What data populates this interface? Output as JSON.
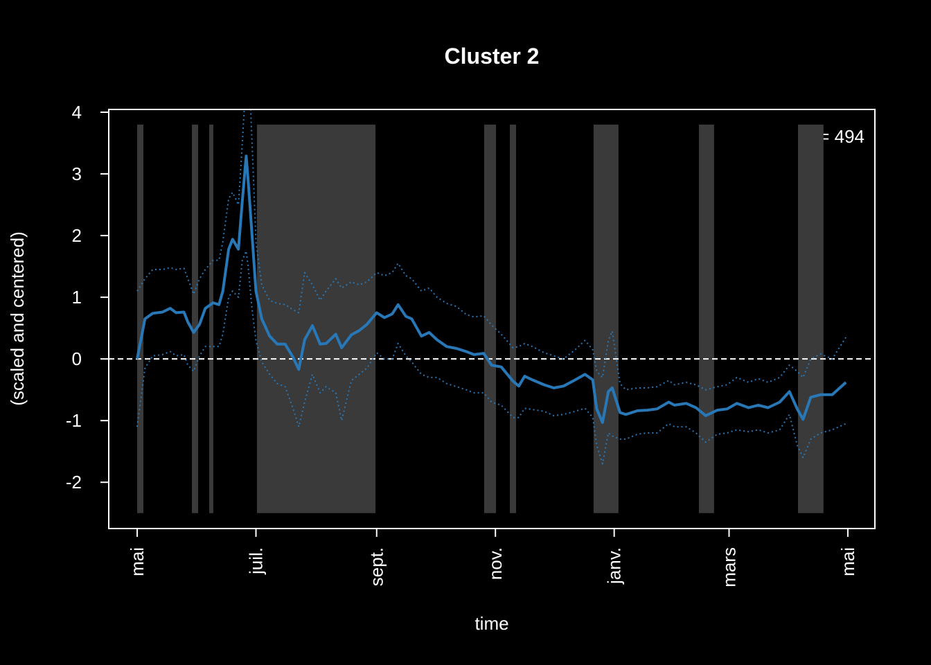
{
  "chart_data": {
    "type": "line",
    "title": "Cluster 2",
    "xlabel": "time",
    "ylabel": "(scaled and centered)",
    "annotation": "n = 494",
    "x": [
      0,
      4,
      8,
      13,
      17,
      20,
      24,
      26,
      29,
      32,
      35,
      39,
      42,
      44,
      47,
      49,
      52,
      54,
      56,
      57,
      59,
      61,
      64,
      68,
      72,
      76,
      80,
      83,
      86,
      90,
      94,
      97,
      102,
      105,
      110,
      114,
      118,
      123,
      127,
      131,
      134,
      138,
      141,
      146,
      150,
      154,
      159,
      164,
      169,
      173,
      178,
      182,
      187,
      193,
      196,
      199,
      203,
      209,
      214,
      219,
      225,
      230,
      234,
      236,
      239,
      242,
      244,
      248,
      251,
      257,
      262,
      267,
      273,
      276,
      282,
      287,
      292,
      298,
      303,
      308,
      314,
      319,
      324,
      330,
      335,
      339,
      342,
      346,
      351,
      357,
      364
    ],
    "series": [
      {
        "name": "mean",
        "color": "#2878b8",
        "style": "solid",
        "values": [
          0,
          0.65,
          0.74,
          0.76,
          0.82,
          0.75,
          0.76,
          0.6,
          0.43,
          0.56,
          0.82,
          0.91,
          0.88,
          1.1,
          1.78,
          1.94,
          1.78,
          2.56,
          3.29,
          2.9,
          2.0,
          1.1,
          0.65,
          0.37,
          0.24,
          0.24,
          0.03,
          -0.17,
          0.31,
          0.54,
          0.24,
          0.25,
          0.4,
          0.18,
          0.39,
          0.46,
          0.56,
          0.75,
          0.67,
          0.73,
          0.88,
          0.69,
          0.65,
          0.37,
          0.43,
          0.31,
          0.2,
          0.17,
          0.12,
          0.07,
          0.09,
          -0.1,
          -0.13,
          -0.36,
          -0.44,
          -0.28,
          -0.34,
          -0.42,
          -0.47,
          -0.44,
          -0.34,
          -0.25,
          -0.34,
          -0.81,
          -1.03,
          -0.53,
          -0.47,
          -0.87,
          -0.9,
          -0.84,
          -0.83,
          -0.81,
          -0.7,
          -0.75,
          -0.72,
          -0.79,
          -0.92,
          -0.83,
          -0.81,
          -0.72,
          -0.79,
          -0.75,
          -0.79,
          -0.7,
          -0.53,
          -0.81,
          -0.98,
          -0.62,
          -0.58,
          -0.58,
          -0.38
        ]
      },
      {
        "name": "upper",
        "color": "#2878b8",
        "style": "dotted",
        "values": [
          1.1,
          1.3,
          1.45,
          1.45,
          1.48,
          1.45,
          1.47,
          1.3,
          1.05,
          1.3,
          1.45,
          1.6,
          1.6,
          1.9,
          2.6,
          2.7,
          2.5,
          3.5,
          4.6,
          5,
          3.5,
          1.9,
          1.2,
          0.95,
          0.9,
          0.88,
          0.8,
          0.75,
          1.4,
          1.2,
          0.95,
          1.1,
          1.3,
          1.15,
          1.25,
          1.2,
          1.25,
          1.4,
          1.35,
          1.4,
          1.55,
          1.35,
          1.3,
          1.1,
          1.15,
          1.0,
          0.9,
          0.85,
          0.72,
          0.68,
          0.7,
          0.55,
          0.4,
          0.18,
          0.2,
          0.25,
          0.2,
          0.1,
          0.05,
          0.0,
          0.15,
          0.3,
          0.15,
          -0.2,
          -0.3,
          0.3,
          0.45,
          -0.4,
          -0.5,
          -0.47,
          -0.47,
          -0.45,
          -0.35,
          -0.42,
          -0.38,
          -0.42,
          -0.5,
          -0.45,
          -0.42,
          -0.3,
          -0.38,
          -0.32,
          -0.38,
          -0.3,
          -0.1,
          -0.2,
          -0.3,
          0.0,
          0.08,
          0.0,
          0.35
        ]
      },
      {
        "name": "lower",
        "color": "#2878b8",
        "style": "dotted",
        "values": [
          -1.1,
          -0.15,
          0.05,
          0.07,
          0.12,
          0.05,
          0.07,
          -0.1,
          -0.2,
          0.05,
          0.2,
          0.2,
          0.2,
          0.4,
          1.0,
          1.1,
          1.0,
          1.6,
          1.75,
          1.5,
          0.8,
          0.3,
          -0.05,
          -0.25,
          -0.4,
          -0.45,
          -0.8,
          -1.1,
          -0.7,
          -0.25,
          -0.55,
          -0.45,
          -0.55,
          -1.0,
          -0.35,
          -0.25,
          -0.15,
          0.1,
          0.0,
          0.0,
          0.25,
          0.05,
          -0.05,
          -0.25,
          -0.3,
          -0.3,
          -0.4,
          -0.45,
          -0.5,
          -0.55,
          -0.55,
          -0.7,
          -0.75,
          -0.95,
          -0.95,
          -0.8,
          -0.82,
          -0.85,
          -0.92,
          -0.9,
          -0.85,
          -0.8,
          -0.95,
          -1.4,
          -1.7,
          -1.2,
          -1.25,
          -1.3,
          -1.3,
          -1.22,
          -1.2,
          -1.2,
          -1.05,
          -1.1,
          -1.1,
          -1.2,
          -1.35,
          -1.22,
          -1.2,
          -1.15,
          -1.18,
          -1.15,
          -1.2,
          -1.15,
          -0.9,
          -1.4,
          -1.6,
          -1.3,
          -1.2,
          -1.15,
          -1.05
        ]
      }
    ],
    "shaded_periods": [
      {
        "start": 0,
        "end": 3.2
      },
      {
        "start": 28.1,
        "end": 31.3
      },
      {
        "start": 37,
        "end": 39.1
      },
      {
        "start": 61.5,
        "end": 122.4
      },
      {
        "start": 178.2,
        "end": 184.3
      },
      {
        "start": 191.4,
        "end": 194.6
      },
      {
        "start": 234.4,
        "end": 247.2
      },
      {
        "start": 288.5,
        "end": 296.3
      },
      {
        "start": 339.4,
        "end": 352.5
      }
    ],
    "shaded_ylim": [
      -2.5,
      3.8
    ],
    "shade_color": "#3a3a3a",
    "hline": 0,
    "xlim": [
      -14.6,
      378.9
    ],
    "xticks": [
      {
        "value": 0,
        "label": "mai"
      },
      {
        "value": 61,
        "label": "juil."
      },
      {
        "value": 123,
        "label": "sept."
      },
      {
        "value": 184,
        "label": "nov."
      },
      {
        "value": 245,
        "label": "janv."
      },
      {
        "value": 304,
        "label": "mars"
      },
      {
        "value": 365,
        "label": "mai"
      }
    ],
    "ylim": [
      -2.75,
      4.045
    ],
    "yticks": [
      -2,
      -1,
      0,
      1,
      2,
      3,
      4
    ]
  }
}
